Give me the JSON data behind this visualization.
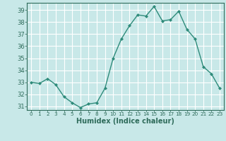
{
  "xlabel": "Humidex (Indice chaleur)",
  "ylabel": "",
  "x": [
    0,
    1,
    2,
    3,
    4,
    5,
    6,
    7,
    8,
    9,
    10,
    11,
    12,
    13,
    14,
    15,
    16,
    17,
    18,
    19,
    20,
    21,
    22,
    23
  ],
  "y": [
    33.0,
    32.9,
    33.3,
    32.8,
    31.8,
    31.3,
    30.9,
    31.2,
    31.3,
    32.5,
    35.0,
    36.6,
    37.7,
    38.6,
    38.5,
    39.3,
    38.1,
    38.2,
    38.9,
    37.4,
    36.6,
    34.3,
    33.7,
    32.5
  ],
  "line_color": "#2e8b7a",
  "marker": "D",
  "marker_size": 2.0,
  "bg_color": "#c8e8e8",
  "grid_color": "#ffffff",
  "tick_color": "#2e6b5a",
  "label_color": "#2e6b5a",
  "ylim": [
    30.7,
    39.6
  ],
  "yticks": [
    31,
    32,
    33,
    34,
    35,
    36,
    37,
    38,
    39
  ],
  "xticks": [
    0,
    1,
    2,
    3,
    4,
    5,
    6,
    7,
    8,
    9,
    10,
    11,
    12,
    13,
    14,
    15,
    16,
    17,
    18,
    19,
    20,
    21,
    22,
    23
  ],
  "xlim": [
    -0.5,
    23.5
  ],
  "xlabel_fontsize": 7,
  "xtick_fontsize": 5.2,
  "ytick_fontsize": 6.0
}
